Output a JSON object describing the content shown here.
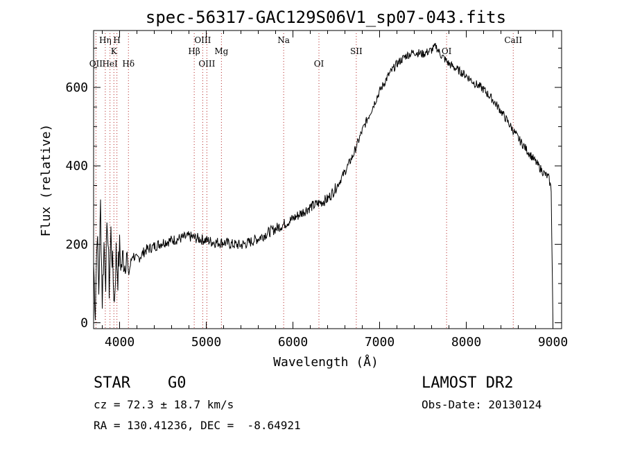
{
  "chart_data": {
    "type": "line",
    "title": "spec-56317-GAC129S06V1_sp07-043.fits",
    "xlabel": "Wavelength (Å)",
    "ylabel": "Flux (relative)",
    "xlim": [
      3700,
      9100
    ],
    "ylim": [
      -15,
      745
    ],
    "x_ticks": [
      4000,
      5000,
      6000,
      7000,
      8000,
      9000
    ],
    "y_ticks": [
      0,
      200,
      400,
      600
    ],
    "grid": false,
    "series": [
      {
        "color": "#000000",
        "points": [
          [
            3700,
            150
          ],
          [
            3720,
            30
          ],
          [
            3740,
            240
          ],
          [
            3760,
            80
          ],
          [
            3780,
            300
          ],
          [
            3800,
            60
          ],
          [
            3820,
            200
          ],
          [
            3840,
            120
          ],
          [
            3860,
            260
          ],
          [
            3880,
            90
          ],
          [
            3900,
            230
          ],
          [
            3920,
            140
          ],
          [
            3940,
            50
          ],
          [
            3960,
            180
          ],
          [
            3980,
            120
          ],
          [
            4000,
            190
          ],
          [
            4020,
            140
          ],
          [
            4040,
            170
          ],
          [
            4060,
            150
          ],
          [
            4080,
            185
          ],
          [
            4100,
            120
          ],
          [
            4150,
            175
          ],
          [
            4200,
            160
          ],
          [
            4300,
            185
          ],
          [
            4400,
            195
          ],
          [
            4500,
            205
          ],
          [
            4600,
            210
          ],
          [
            4700,
            215
          ],
          [
            4800,
            220
          ],
          [
            4900,
            215
          ],
          [
            5000,
            210
          ],
          [
            5100,
            205
          ],
          [
            5200,
            205
          ],
          [
            5300,
            200
          ],
          [
            5400,
            198
          ],
          [
            5500,
            205
          ],
          [
            5600,
            215
          ],
          [
            5700,
            228
          ],
          [
            5800,
            240
          ],
          [
            5900,
            252
          ],
          [
            6000,
            265
          ],
          [
            6100,
            280
          ],
          [
            6200,
            295
          ],
          [
            6300,
            305
          ],
          [
            6400,
            315
          ],
          [
            6500,
            345
          ],
          [
            6600,
            385
          ],
          [
            6700,
            430
          ],
          [
            6800,
            490
          ],
          [
            6900,
            540
          ],
          [
            7000,
            590
          ],
          [
            7100,
            630
          ],
          [
            7200,
            660
          ],
          [
            7300,
            680
          ],
          [
            7400,
            690
          ],
          [
            7500,
            685
          ],
          [
            7600,
            695
          ],
          [
            7650,
            705
          ],
          [
            7700,
            685
          ],
          [
            7800,
            660
          ],
          [
            7900,
            645
          ],
          [
            8000,
            630
          ],
          [
            8100,
            610
          ],
          [
            8200,
            595
          ],
          [
            8300,
            570
          ],
          [
            8400,
            540
          ],
          [
            8500,
            505
          ],
          [
            8600,
            470
          ],
          [
            8700,
            440
          ],
          [
            8800,
            410
          ],
          [
            8900,
            380
          ],
          [
            8950,
            370
          ],
          [
            8980,
            340
          ],
          [
            9000,
            0
          ]
        ]
      }
    ],
    "line_markers": [
      {
        "label": "OII",
        "x": 3727,
        "row": "low"
      },
      {
        "label": "Hη",
        "x": 3835,
        "row": "top"
      },
      {
        "label": "HeI",
        "x": 3889,
        "row": "low"
      },
      {
        "label": "K",
        "x": 3934,
        "row": "mid"
      },
      {
        "label": "H",
        "x": 3969,
        "row": "top"
      },
      {
        "label": "Hδ",
        "x": 4102,
        "row": "low"
      },
      {
        "label": "Hβ",
        "x": 4861,
        "row": "mid"
      },
      {
        "label": "OIII",
        "x": 4959,
        "row": "top"
      },
      {
        "label": "OIII",
        "x": 5007,
        "row": "low"
      },
      {
        "label": "Mg",
        "x": 5175,
        "row": "mid"
      },
      {
        "label": "Na",
        "x": 5893,
        "row": "top"
      },
      {
        "label": "OI",
        "x": 6300,
        "row": "low"
      },
      {
        "label": "OI",
        "x": 7773,
        "row": "mid"
      },
      {
        "label": "SII",
        "x": 6731,
        "row": "mid"
      },
      {
        "label": "CaII",
        "x": 8542,
        "row": "top"
      }
    ]
  },
  "footer": {
    "object_class": "STAR",
    "subclass": "G0",
    "redshift_line": "cz = 72.3 ± 18.7 km/s",
    "coords_line": "RA = 130.41236, DEC =  -8.64921",
    "survey": "LAMOST DR2",
    "obs_date": "Obs-Date: 20130124"
  }
}
